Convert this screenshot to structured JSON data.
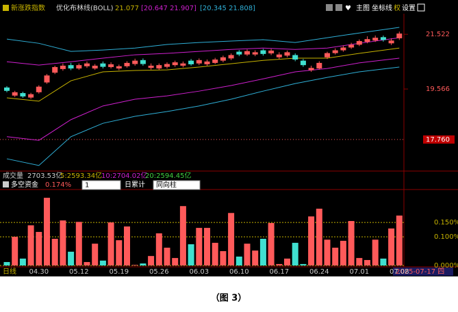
{
  "header": {
    "index_name": "新涨跌指数",
    "indicator": "优化布林线(BOLL)",
    "mid": "21.077",
    "band1": "[20.647  21.907]",
    "band2": "[20.345  21.808]",
    "buttons": [
      "主图",
      "坐标线",
      "权",
      "设置"
    ]
  },
  "chart_data": [
    {
      "type": "candlestick",
      "categories": [
        null,
        null,
        null,
        null,
        "04.30",
        null,
        null,
        null,
        null,
        "05.12",
        null,
        null,
        null,
        null,
        "05.19",
        null,
        null,
        null,
        null,
        "05.26",
        null,
        null,
        null,
        null,
        "06.03",
        null,
        null,
        null,
        null,
        "06.10",
        null,
        null,
        null,
        null,
        "06.17",
        null,
        null,
        null,
        null,
        "06.24",
        null,
        null,
        null,
        null,
        "07.01",
        null,
        null,
        null,
        null,
        "07.08"
      ],
      "candles": [
        [
          19.62,
          19.67,
          19.45,
          19.5
        ],
        [
          19.33,
          19.5,
          19.28,
          19.45
        ],
        [
          19.42,
          19.47,
          19.25,
          19.3
        ],
        [
          19.26,
          19.43,
          19.21,
          19.38
        ],
        [
          19.45,
          19.7,
          19.4,
          19.65
        ],
        [
          19.8,
          20.1,
          19.75,
          20.05
        ],
        [
          20.15,
          20.4,
          20.1,
          20.35
        ],
        [
          20.28,
          20.48,
          20.22,
          20.4
        ],
        [
          20.42,
          20.5,
          20.24,
          20.3
        ],
        [
          20.3,
          20.48,
          20.25,
          20.42
        ],
        [
          20.38,
          20.55,
          20.32,
          20.48
        ],
        [
          20.3,
          20.46,
          20.25,
          20.4
        ],
        [
          20.48,
          20.55,
          20.3,
          20.36
        ],
        [
          20.35,
          20.52,
          20.3,
          20.45
        ],
        [
          20.3,
          20.44,
          20.24,
          20.38
        ],
        [
          20.38,
          20.56,
          20.33,
          20.5
        ],
        [
          20.46,
          20.65,
          20.4,
          20.58
        ],
        [
          20.6,
          20.66,
          20.4,
          20.46
        ],
        [
          20.32,
          20.48,
          20.26,
          20.4
        ],
        [
          20.3,
          20.48,
          20.25,
          20.42
        ],
        [
          20.36,
          20.52,
          20.3,
          20.46
        ],
        [
          20.42,
          20.58,
          20.36,
          20.52
        ],
        [
          20.4,
          20.55,
          20.34,
          20.48
        ],
        [
          20.58,
          20.64,
          20.4,
          20.45
        ],
        [
          20.48,
          20.66,
          20.42,
          20.6
        ],
        [
          20.45,
          20.62,
          20.4,
          20.55
        ],
        [
          20.5,
          20.68,
          20.46,
          20.62
        ],
        [
          20.58,
          20.76,
          20.52,
          20.7
        ],
        [
          20.66,
          20.84,
          20.6,
          20.78
        ],
        [
          20.9,
          20.96,
          20.74,
          20.8
        ],
        [
          20.8,
          20.98,
          20.75,
          20.92
        ],
        [
          20.8,
          20.95,
          20.74,
          20.88
        ],
        [
          20.95,
          21.0,
          20.76,
          20.82
        ],
        [
          20.84,
          21.0,
          20.78,
          20.94
        ],
        [
          20.7,
          20.88,
          20.64,
          20.8
        ],
        [
          20.76,
          20.94,
          20.7,
          20.88
        ],
        [
          20.78,
          20.84,
          20.56,
          20.62
        ],
        [
          20.58,
          20.64,
          20.36,
          20.42
        ],
        [
          20.24,
          20.4,
          20.18,
          20.32
        ],
        [
          20.3,
          20.56,
          20.26,
          20.5
        ],
        [
          20.7,
          20.9,
          20.64,
          20.85
        ],
        [
          20.85,
          21.02,
          20.8,
          20.95
        ],
        [
          20.95,
          21.12,
          20.9,
          21.05
        ],
        [
          21.05,
          21.22,
          21.0,
          21.15
        ],
        [
          21.15,
          21.34,
          21.1,
          21.28
        ],
        [
          21.25,
          21.45,
          21.2,
          21.35
        ],
        [
          21.3,
          21.48,
          21.25,
          21.4
        ],
        [
          21.42,
          21.48,
          21.26,
          21.32
        ],
        [
          21.2,
          21.38,
          21.14,
          21.3
        ],
        [
          21.38,
          21.62,
          21.32,
          21.55
        ]
      ],
      "up_color": "#ff5a5a",
      "down_color": "#40e0d0",
      "series": [
        {
          "color": "#2fb0d8",
          "x": [
            0,
            4,
            8,
            12,
            16,
            20,
            24,
            28,
            32,
            36,
            40,
            44,
            49
          ],
          "values": [
            21.35,
            21.2,
            20.91,
            20.96,
            21.03,
            21.16,
            21.23,
            21.28,
            21.33,
            21.23,
            21.4,
            21.57,
            21.77
          ]
        },
        {
          "color": "#d020d0",
          "x": [
            0,
            4,
            8,
            12,
            16,
            20,
            24,
            28,
            32,
            36,
            40,
            44,
            49
          ],
          "values": [
            20.54,
            20.42,
            20.54,
            20.67,
            20.79,
            20.84,
            20.91,
            20.98,
            21.03,
            20.98,
            21.03,
            21.2,
            21.4
          ]
        },
        {
          "color": "#c8b400",
          "x": [
            0,
            4,
            8,
            12,
            16,
            20,
            24,
            28,
            32,
            36,
            40,
            44,
            49
          ],
          "values": [
            19.25,
            19.13,
            19.86,
            20.18,
            20.23,
            20.25,
            20.35,
            20.47,
            20.59,
            20.67,
            20.67,
            20.84,
            21.03
          ]
        },
        {
          "color": "#d020d0",
          "x": [
            0,
            4,
            8,
            12,
            16,
            20,
            24,
            28,
            32,
            36,
            40,
            44,
            49
          ],
          "values": [
            17.86,
            17.73,
            18.47,
            18.96,
            19.2,
            19.32,
            19.49,
            19.69,
            19.93,
            20.18,
            20.3,
            20.5,
            20.67
          ]
        },
        {
          "color": "#2fb0d8",
          "x": [
            0,
            4,
            8,
            12,
            16,
            20,
            24,
            28,
            32,
            36,
            40,
            44,
            49
          ],
          "values": [
            17.07,
            16.83,
            17.86,
            18.34,
            18.59,
            18.76,
            18.96,
            19.2,
            19.49,
            19.76,
            19.98,
            20.18,
            20.35
          ]
        }
      ],
      "ylim": [
        16.68,
        22.26
      ],
      "yticks": [
        21.522,
        19.566
      ],
      "marker": {
        "value": 17.76,
        "label": "17.760"
      }
    },
    {
      "type": "bar",
      "title": "多空资金",
      "value_label": "0.174%",
      "values": [
        0.012,
        0.1,
        0.024,
        0.14,
        0.117,
        0.236,
        0.093,
        0.157,
        0.048,
        0.152,
        0.012,
        0.076,
        0.017,
        0.15,
        0.088,
        0.136,
        0.002,
        0.007,
        0.033,
        0.112,
        0.062,
        0.026,
        0.207,
        0.074,
        0.131,
        0.131,
        0.079,
        0.05,
        0.183,
        0.031,
        0.076,
        0.052,
        0.093,
        0.148,
        0.005,
        0.024,
        0.079,
        0.005,
        0.171,
        0.198,
        0.09,
        0.062,
        0.086,
        0.155,
        0.026,
        0.019,
        0.09,
        0.024,
        0.129,
        0.174
      ],
      "ylim": [
        0,
        0.26
      ],
      "yticks": [
        {
          "value": 0,
          "label": "0.000%"
        },
        {
          "value": 0.1,
          "label": "0.100%"
        },
        {
          "value": 0.15,
          "label": "0.150%"
        }
      ]
    }
  ],
  "volume": {
    "label": "成交量",
    "value": "2703.53亿",
    "ma5": "5:2593.34亿",
    "ma10": "10:2704.02亿",
    "ma20": "20:2594.45亿"
  },
  "controls": {
    "select": "1",
    "mode": "日累计",
    "style": "同向柱"
  },
  "footer": {
    "period": "日线",
    "date": "2025-07-17 四"
  },
  "caption": "（图 3）"
}
